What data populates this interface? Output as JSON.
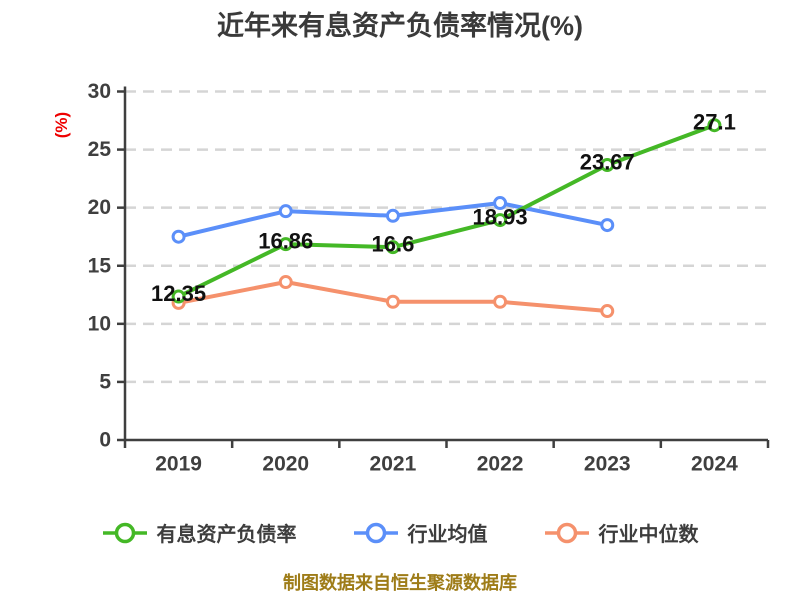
{
  "title": "近年来有息资产负债率情况(%)",
  "footer_note": "制图数据来自恒生聚源数据库",
  "chart_data": {
    "type": "line",
    "title": "近年来有息资产负债率情况(%)",
    "ylabel": "(%)",
    "xlabel": "",
    "categories": [
      "2019",
      "2020",
      "2021",
      "2022",
      "2023",
      "2024"
    ],
    "ylim": [
      0,
      30
    ],
    "yticks": [
      0,
      5,
      10,
      15,
      20,
      25,
      30
    ],
    "grid": "horizontal-dashed",
    "legend_position": "bottom",
    "series": [
      {
        "name": "有息资产负债率",
        "color": "#44b826",
        "values": [
          12.35,
          16.86,
          16.6,
          18.93,
          23.67,
          27.1
        ],
        "data_labels": [
          "12.35",
          "16.86",
          "16.6",
          "18.93",
          "23.67",
          "27.1"
        ]
      },
      {
        "name": "行业均值",
        "color": "#5b8ff9",
        "values": [
          17.5,
          19.7,
          19.3,
          20.4,
          18.5,
          null
        ],
        "data_labels": null
      },
      {
        "name": "行业中位数",
        "color": "#f5916c",
        "values": [
          11.8,
          13.6,
          11.9,
          11.9,
          11.1,
          null
        ],
        "data_labels": null
      }
    ],
    "marker_style": "white-filled-circle",
    "source_note": "制图数据来自恒生聚源数据库",
    "style": {
      "title_color": "#3a3a3a",
      "tick_label_color": "#3f3f3f",
      "data_label_color": "#111111",
      "axis_color": "#3f3f3f",
      "grid_color": "#d5d5d5",
      "ylabel_color": "#ee0000",
      "source_note_color": "#9e7c18",
      "background": "#ffffff"
    }
  }
}
